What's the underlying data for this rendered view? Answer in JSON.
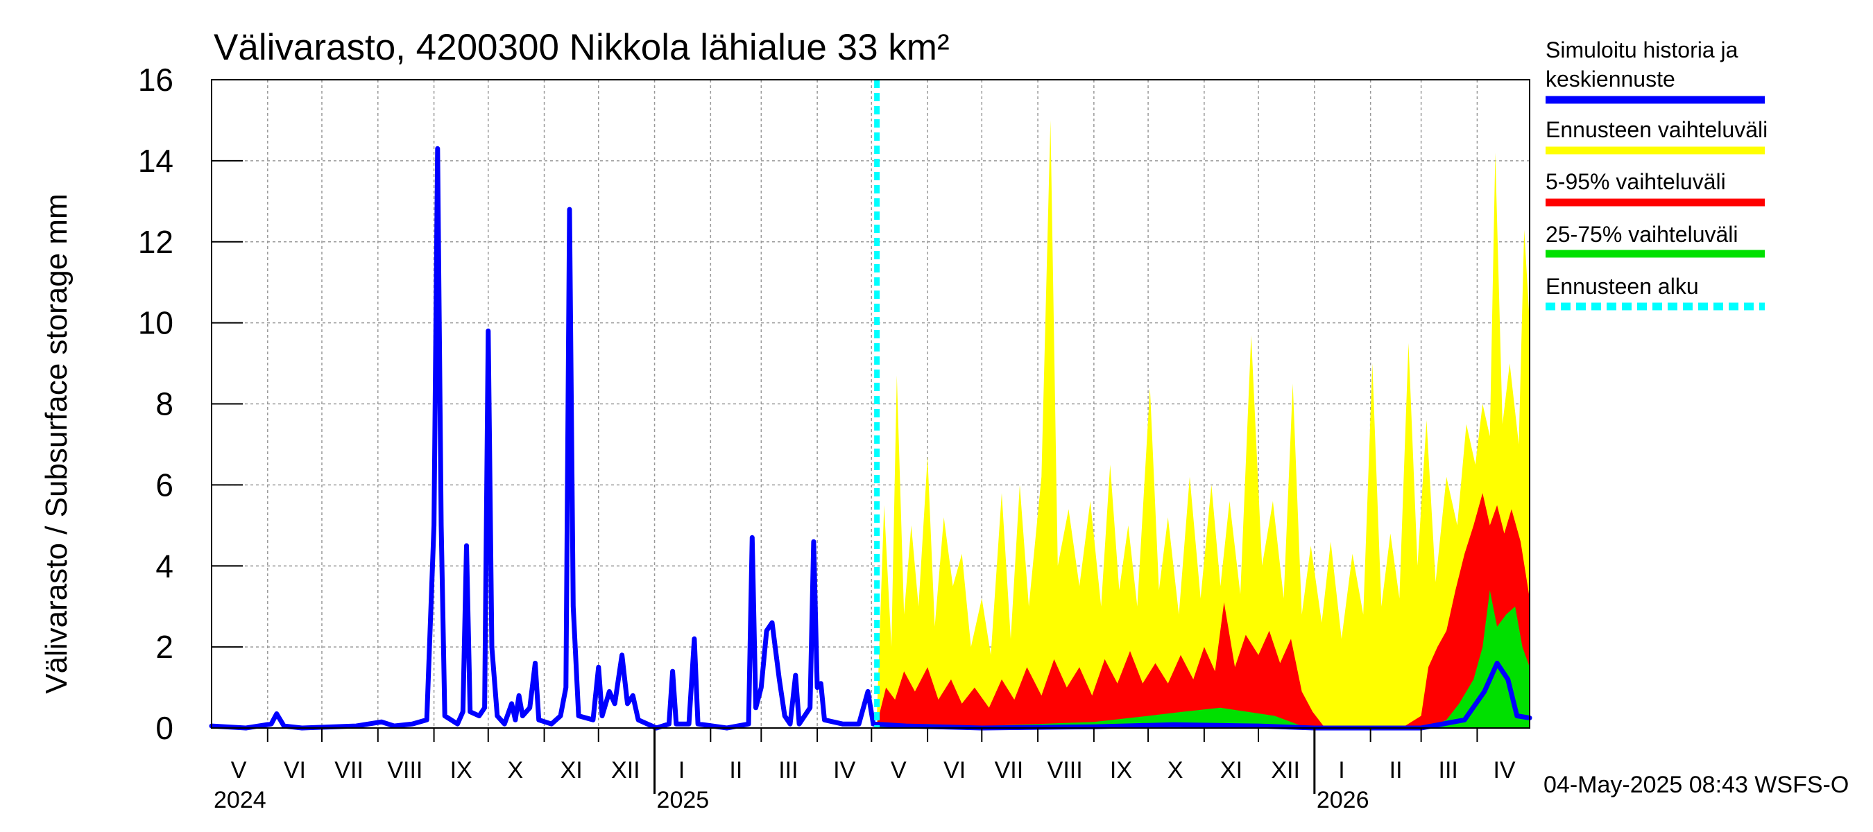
{
  "chart_data": {
    "type": "area",
    "title": "Välivarasto, 4200300 Nikkola lähialue 33 km²",
    "ylabel": "Välivarasto / Subsurface storage  mm",
    "ylim": [
      0,
      16
    ],
    "yticks": [
      0,
      2,
      4,
      6,
      8,
      10,
      12,
      14,
      16
    ],
    "x_start": "2024-05-01",
    "x_end": "2026-04-30",
    "forecast_start": "2025-05-04",
    "grid": true,
    "month_labels": [
      {
        "label": "V",
        "date": "2024-05-16"
      },
      {
        "label": "VI",
        "date": "2024-06-16"
      },
      {
        "label": "VII",
        "date": "2024-07-16"
      },
      {
        "label": "VIII",
        "date": "2024-08-16"
      },
      {
        "label": "IX",
        "date": "2024-09-16"
      },
      {
        "label": "X",
        "date": "2024-10-16"
      },
      {
        "label": "XI",
        "date": "2024-11-16"
      },
      {
        "label": "XII",
        "date": "2024-12-16"
      },
      {
        "label": "I",
        "date": "2025-01-16"
      },
      {
        "label": "II",
        "date": "2025-02-15"
      },
      {
        "label": "III",
        "date": "2025-03-16"
      },
      {
        "label": "IV",
        "date": "2025-04-16"
      },
      {
        "label": "V",
        "date": "2025-05-16"
      },
      {
        "label": "VI",
        "date": "2025-06-16"
      },
      {
        "label": "VII",
        "date": "2025-07-16"
      },
      {
        "label": "VIII",
        "date": "2025-08-16"
      },
      {
        "label": "IX",
        "date": "2025-09-16"
      },
      {
        "label": "X",
        "date": "2025-10-16"
      },
      {
        "label": "XI",
        "date": "2025-11-16"
      },
      {
        "label": "XII",
        "date": "2025-12-16"
      },
      {
        "label": "I",
        "date": "2026-01-16"
      },
      {
        "label": "II",
        "date": "2026-02-15"
      },
      {
        "label": "III",
        "date": "2026-03-16"
      },
      {
        "label": "IV",
        "date": "2026-04-16"
      }
    ],
    "year_labels": [
      {
        "label": "2024",
        "date": "2024-05-01"
      },
      {
        "label": "2025",
        "date": "2025-01-01"
      },
      {
        "label": "2026",
        "date": "2026-01-01"
      }
    ],
    "legend": [
      {
        "label": "Simuloitu historia ja keskiennuste",
        "color": "#0000ff",
        "style": "solid"
      },
      {
        "label": "Ennusteen vaihteluväli",
        "color": "#ffff00",
        "style": "solid"
      },
      {
        "label": "5-95% vaihteluväli",
        "color": "#ff0000",
        "style": "solid"
      },
      {
        "label": "25-75% vaihteluväli",
        "color": "#00e000",
        "style": "solid"
      },
      {
        "label": "Ennusteen alku",
        "color": "#00ffff",
        "style": "dashed"
      }
    ],
    "legend_position": "right",
    "footer": "04-May-2025 08:43 WSFS-O",
    "colors": {
      "history": "#0000ff",
      "range": "#ffff00",
      "p5_95": "#ff0000",
      "p25_75": "#00e000",
      "forecast_start": "#00ffff",
      "grid": "#999999"
    },
    "series": [
      {
        "name": "Simuloitu historia ja keskiennuste",
        "points": [
          [
            "2024-05-01",
            0.05
          ],
          [
            "2024-05-20",
            0.0
          ],
          [
            "2024-06-03",
            0.1
          ],
          [
            "2024-06-06",
            0.35
          ],
          [
            "2024-06-10",
            0.05
          ],
          [
            "2024-06-20",
            0.0
          ],
          [
            "2024-07-20",
            0.05
          ],
          [
            "2024-08-03",
            0.15
          ],
          [
            "2024-08-10",
            0.05
          ],
          [
            "2024-08-20",
            0.1
          ],
          [
            "2024-08-28",
            0.2
          ],
          [
            "2024-09-01",
            5.0
          ],
          [
            "2024-09-03",
            14.3
          ],
          [
            "2024-09-05",
            5.0
          ],
          [
            "2024-09-07",
            0.3
          ],
          [
            "2024-09-14",
            0.1
          ],
          [
            "2024-09-17",
            0.4
          ],
          [
            "2024-09-19",
            4.5
          ],
          [
            "2024-09-21",
            0.4
          ],
          [
            "2024-09-26",
            0.3
          ],
          [
            "2024-09-29",
            0.5
          ],
          [
            "2024-10-01",
            9.8
          ],
          [
            "2024-10-03",
            2.0
          ],
          [
            "2024-10-06",
            0.3
          ],
          [
            "2024-10-10",
            0.1
          ],
          [
            "2024-10-14",
            0.6
          ],
          [
            "2024-10-16",
            0.2
          ],
          [
            "2024-10-18",
            0.8
          ],
          [
            "2024-10-20",
            0.3
          ],
          [
            "2024-10-24",
            0.5
          ],
          [
            "2024-10-27",
            1.6
          ],
          [
            "2024-10-29",
            0.2
          ],
          [
            "2024-11-05",
            0.1
          ],
          [
            "2024-11-10",
            0.3
          ],
          [
            "2024-11-13",
            1.0
          ],
          [
            "2024-11-15",
            12.8
          ],
          [
            "2024-11-17",
            3.0
          ],
          [
            "2024-11-20",
            0.3
          ],
          [
            "2024-11-28",
            0.2
          ],
          [
            "2024-12-01",
            1.5
          ],
          [
            "2024-12-03",
            0.3
          ],
          [
            "2024-12-07",
            0.9
          ],
          [
            "2024-12-10",
            0.6
          ],
          [
            "2024-12-14",
            1.8
          ],
          [
            "2024-12-17",
            0.6
          ],
          [
            "2024-12-20",
            0.8
          ],
          [
            "2024-12-23",
            0.2
          ],
          [
            "2025-01-02",
            0.0
          ],
          [
            "2025-01-09",
            0.1
          ],
          [
            "2025-01-11",
            1.4
          ],
          [
            "2025-01-13",
            0.1
          ],
          [
            "2025-01-20",
            0.1
          ],
          [
            "2025-01-23",
            2.2
          ],
          [
            "2025-01-25",
            0.1
          ],
          [
            "2025-02-10",
            0.0
          ],
          [
            "2025-02-22",
            0.1
          ],
          [
            "2025-02-24",
            4.7
          ],
          [
            "2025-02-26",
            0.5
          ],
          [
            "2025-03-01",
            1.0
          ],
          [
            "2025-03-04",
            2.4
          ],
          [
            "2025-03-07",
            2.6
          ],
          [
            "2025-03-11",
            1.2
          ],
          [
            "2025-03-14",
            0.3
          ],
          [
            "2025-03-17",
            0.1
          ],
          [
            "2025-03-20",
            1.3
          ],
          [
            "2025-03-22",
            0.1
          ],
          [
            "2025-03-28",
            0.5
          ],
          [
            "2025-03-30",
            4.6
          ],
          [
            "2025-04-01",
            1.0
          ],
          [
            "2025-04-03",
            1.1
          ],
          [
            "2025-04-05",
            0.2
          ],
          [
            "2025-04-15",
            0.1
          ],
          [
            "2025-04-24",
            0.1
          ],
          [
            "2025-04-29",
            0.9
          ],
          [
            "2025-05-02",
            0.1
          ],
          [
            "2025-05-20",
            0.05
          ],
          [
            "2025-07-01",
            0.0
          ],
          [
            "2025-09-01",
            0.03
          ],
          [
            "2025-10-15",
            0.08
          ],
          [
            "2025-12-01",
            0.05
          ],
          [
            "2026-01-01",
            0.0
          ],
          [
            "2026-03-01",
            0.0
          ],
          [
            "2026-03-25",
            0.2
          ],
          [
            "2026-04-05",
            0.9
          ],
          [
            "2026-04-12",
            1.6
          ],
          [
            "2026-04-18",
            1.2
          ],
          [
            "2026-04-23",
            0.3
          ],
          [
            "2026-04-30",
            0.25
          ]
        ]
      },
      {
        "name": "Ennusteen vaihteluväli",
        "points": [
          [
            "2025-05-04",
            0.3
          ],
          [
            "2025-05-08",
            5.5
          ],
          [
            "2025-05-12",
            2.0
          ],
          [
            "2025-05-15",
            8.7
          ],
          [
            "2025-05-19",
            2.8
          ],
          [
            "2025-05-23",
            5.0
          ],
          [
            "2025-05-27",
            3.0
          ],
          [
            "2025-06-01",
            6.7
          ],
          [
            "2025-06-05",
            2.5
          ],
          [
            "2025-06-10",
            5.2
          ],
          [
            "2025-06-15",
            3.5
          ],
          [
            "2025-06-20",
            4.3
          ],
          [
            "2025-06-25",
            2.0
          ],
          [
            "2025-07-01",
            3.2
          ],
          [
            "2025-07-06",
            1.8
          ],
          [
            "2025-07-12",
            5.8
          ],
          [
            "2025-07-17",
            2.2
          ],
          [
            "2025-07-22",
            6.0
          ],
          [
            "2025-07-27",
            3.0
          ],
          [
            "2025-08-03",
            6.2
          ],
          [
            "2025-08-08",
            15.0
          ],
          [
            "2025-08-12",
            4.0
          ],
          [
            "2025-08-18",
            5.4
          ],
          [
            "2025-08-24",
            3.5
          ],
          [
            "2025-08-30",
            5.6
          ],
          [
            "2025-09-05",
            3.0
          ],
          [
            "2025-09-10",
            6.5
          ],
          [
            "2025-09-15",
            3.4
          ],
          [
            "2025-09-20",
            5.0
          ],
          [
            "2025-09-25",
            3.0
          ],
          [
            "2025-10-02",
            8.4
          ],
          [
            "2025-10-07",
            3.4
          ],
          [
            "2025-10-12",
            5.2
          ],
          [
            "2025-10-18",
            2.8
          ],
          [
            "2025-10-24",
            6.2
          ],
          [
            "2025-10-30",
            3.2
          ],
          [
            "2025-11-05",
            6.0
          ],
          [
            "2025-11-10",
            3.5
          ],
          [
            "2025-11-15",
            5.6
          ],
          [
            "2025-11-21",
            3.3
          ],
          [
            "2025-11-27",
            9.7
          ],
          [
            "2025-12-03",
            4.0
          ],
          [
            "2025-12-09",
            5.6
          ],
          [
            "2025-12-15",
            3.2
          ],
          [
            "2025-12-20",
            8.5
          ],
          [
            "2025-12-25",
            2.8
          ],
          [
            "2025-12-30",
            4.5
          ],
          [
            "2026-01-05",
            2.6
          ],
          [
            "2026-01-10",
            4.6
          ],
          [
            "2026-01-16",
            2.2
          ],
          [
            "2026-01-22",
            4.3
          ],
          [
            "2026-01-28",
            2.8
          ],
          [
            "2026-02-02",
            9.0
          ],
          [
            "2026-02-07",
            3.0
          ],
          [
            "2026-02-12",
            4.8
          ],
          [
            "2026-02-17",
            3.2
          ],
          [
            "2026-02-22",
            9.5
          ],
          [
            "2026-02-27",
            4.0
          ],
          [
            "2026-03-04",
            7.6
          ],
          [
            "2026-03-09",
            3.6
          ],
          [
            "2026-03-15",
            6.2
          ],
          [
            "2026-03-21",
            5.0
          ],
          [
            "2026-03-26",
            7.5
          ],
          [
            "2026-03-31",
            6.5
          ],
          [
            "2026-04-04",
            8.0
          ],
          [
            "2026-04-08",
            7.2
          ],
          [
            "2026-04-11",
            14.2
          ],
          [
            "2026-04-15",
            7.5
          ],
          [
            "2026-04-19",
            9.0
          ],
          [
            "2026-04-24",
            7.0
          ],
          [
            "2026-04-27",
            12.3
          ],
          [
            "2026-04-30",
            10.0
          ]
        ]
      },
      {
        "name": "5-95% vaihteluväli",
        "points": [
          [
            "2025-05-04",
            0.1
          ],
          [
            "2025-05-09",
            1.0
          ],
          [
            "2025-05-14",
            0.7
          ],
          [
            "2025-05-19",
            1.4
          ],
          [
            "2025-05-25",
            0.9
          ],
          [
            "2025-06-01",
            1.5
          ],
          [
            "2025-06-07",
            0.7
          ],
          [
            "2025-06-14",
            1.2
          ],
          [
            "2025-06-20",
            0.6
          ],
          [
            "2025-06-27",
            1.0
          ],
          [
            "2025-07-05",
            0.5
          ],
          [
            "2025-07-12",
            1.2
          ],
          [
            "2025-07-19",
            0.7
          ],
          [
            "2025-07-26",
            1.5
          ],
          [
            "2025-08-03",
            0.8
          ],
          [
            "2025-08-10",
            1.7
          ],
          [
            "2025-08-17",
            1.0
          ],
          [
            "2025-08-24",
            1.5
          ],
          [
            "2025-08-31",
            0.8
          ],
          [
            "2025-09-07",
            1.7
          ],
          [
            "2025-09-14",
            1.1
          ],
          [
            "2025-09-21",
            1.9
          ],
          [
            "2025-09-28",
            1.1
          ],
          [
            "2025-10-05",
            1.6
          ],
          [
            "2025-10-12",
            1.1
          ],
          [
            "2025-10-19",
            1.8
          ],
          [
            "2025-10-26",
            1.2
          ],
          [
            "2025-11-01",
            2.0
          ],
          [
            "2025-11-07",
            1.4
          ],
          [
            "2025-11-12",
            3.1
          ],
          [
            "2025-11-18",
            1.5
          ],
          [
            "2025-11-24",
            2.3
          ],
          [
            "2025-12-01",
            1.8
          ],
          [
            "2025-12-07",
            2.4
          ],
          [
            "2025-12-13",
            1.6
          ],
          [
            "2025-12-19",
            2.2
          ],
          [
            "2025-12-25",
            0.9
          ],
          [
            "2025-12-31",
            0.4
          ],
          [
            "2026-01-06",
            0.05
          ],
          [
            "2026-02-01",
            0.0
          ],
          [
            "2026-02-20",
            0.05
          ],
          [
            "2026-03-01",
            0.3
          ],
          [
            "2026-03-05",
            1.5
          ],
          [
            "2026-03-10",
            2.0
          ],
          [
            "2026-03-15",
            2.4
          ],
          [
            "2026-03-20",
            3.4
          ],
          [
            "2026-03-25",
            4.3
          ],
          [
            "2026-03-30",
            5.0
          ],
          [
            "2026-04-04",
            5.8
          ],
          [
            "2026-04-08",
            5.0
          ],
          [
            "2026-04-12",
            5.5
          ],
          [
            "2026-04-16",
            4.8
          ],
          [
            "2026-04-20",
            5.4
          ],
          [
            "2026-04-25",
            4.6
          ],
          [
            "2026-04-30",
            3.2
          ]
        ]
      },
      {
        "name": "25-75% vaihteluväli",
        "points": [
          [
            "2025-05-04",
            0.05
          ],
          [
            "2025-06-01",
            0.1
          ],
          [
            "2025-07-01",
            0.05
          ],
          [
            "2025-08-01",
            0.1
          ],
          [
            "2025-09-01",
            0.15
          ],
          [
            "2025-10-01",
            0.3
          ],
          [
            "2025-10-20",
            0.4
          ],
          [
            "2025-11-10",
            0.5
          ],
          [
            "2025-11-25",
            0.4
          ],
          [
            "2025-12-10",
            0.3
          ],
          [
            "2025-12-25",
            0.05
          ],
          [
            "2026-01-05",
            0.0
          ],
          [
            "2026-03-05",
            0.0
          ],
          [
            "2026-03-15",
            0.2
          ],
          [
            "2026-03-22",
            0.6
          ],
          [
            "2026-03-30",
            1.2
          ],
          [
            "2026-04-04",
            2.0
          ],
          [
            "2026-04-08",
            3.4
          ],
          [
            "2026-04-12",
            2.5
          ],
          [
            "2026-04-17",
            2.8
          ],
          [
            "2026-04-22",
            3.0
          ],
          [
            "2026-04-26",
            2.0
          ],
          [
            "2026-04-30",
            1.5
          ]
        ]
      }
    ]
  }
}
